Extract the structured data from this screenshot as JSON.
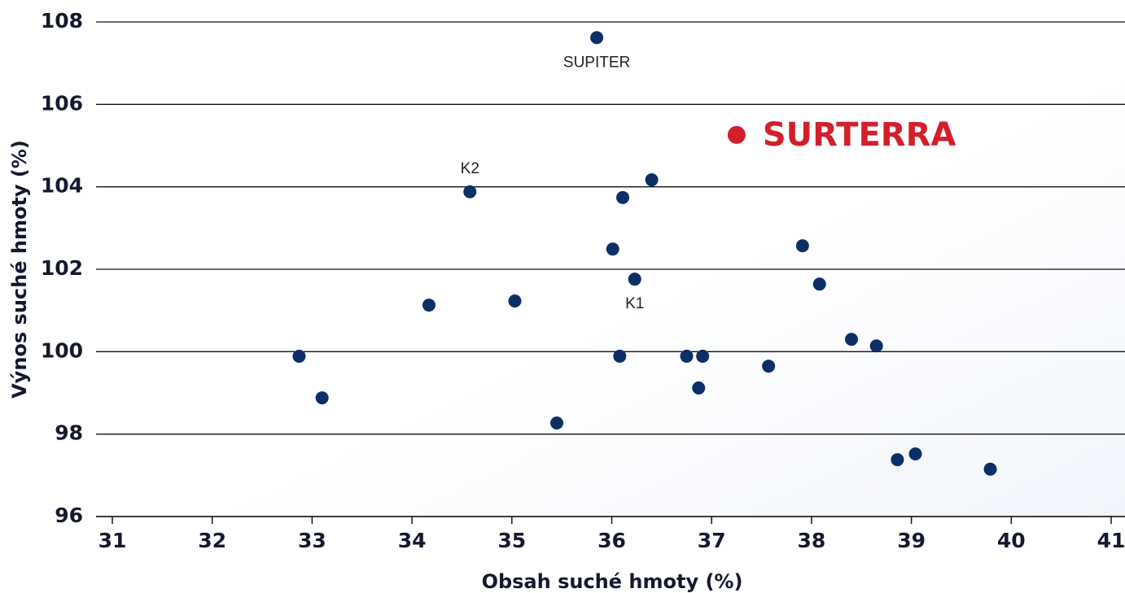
{
  "chart_data": {
    "type": "scatter",
    "xlabel": "Obsah suché hmoty (%)",
    "ylabel": "Výnos suché hmoty (%)",
    "xlim": [
      31,
      41
    ],
    "xticks": [
      31,
      32,
      33,
      34,
      35,
      36,
      37,
      38,
      39,
      40,
      41
    ],
    "ylim": [
      96,
      108
    ],
    "yticks": [
      96,
      98,
      100,
      102,
      104,
      106,
      108
    ],
    "grid": true,
    "series": [
      {
        "color": "#0b2f66",
        "x": [
          35.85,
          36.23,
          34.58,
          36.11,
          36.4,
          36.01,
          37.91,
          38.08,
          34.17,
          35.03,
          32.87,
          33.1,
          35.45,
          36.08,
          36.75,
          36.91,
          36.87,
          37.57,
          38.4,
          38.65,
          38.86,
          39.04,
          39.79
        ],
        "values": [
          107.62,
          101.76,
          103.88,
          103.74,
          104.17,
          102.49,
          102.57,
          101.64,
          101.13,
          101.23,
          99.89,
          98.88,
          98.27,
          99.89,
          99.89,
          99.89,
          99.12,
          99.65,
          100.3,
          100.14,
          97.38,
          97.52,
          97.15
        ],
        "point_labels": [
          "SUPITER",
          "K1",
          "K2",
          null,
          null,
          null,
          null,
          null,
          null,
          null,
          null,
          null,
          null,
          null,
          null,
          null,
          null,
          null,
          null,
          null,
          null,
          null,
          null
        ]
      },
      {
        "name": "SURTERRA",
        "color": "#d21f2b",
        "x": [
          37.25
        ],
        "values": [
          105.26
        ]
      }
    ]
  }
}
